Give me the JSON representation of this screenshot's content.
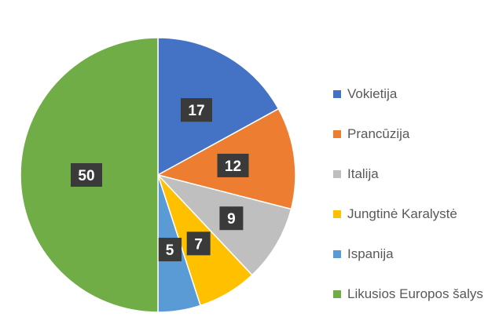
{
  "chart_data": {
    "type": "pie",
    "series": [
      {
        "label": "Vokietija",
        "value": 17,
        "color": "#4472C4"
      },
      {
        "label": "Prancūzija",
        "value": 12,
        "color": "#ED7D31"
      },
      {
        "label": "Italija",
        "value": 9,
        "color": "#BFBFBF"
      },
      {
        "label": "Jungtinė Karalystė",
        "value": 7,
        "color": "#FFC000"
      },
      {
        "label": "Ispanija",
        "value": 5,
        "color": "#5B9BD5"
      },
      {
        "label": "Likusios Europos šalys",
        "value": 50,
        "color": "#70AD47"
      }
    ],
    "data_labels": true,
    "legend": "right"
  }
}
